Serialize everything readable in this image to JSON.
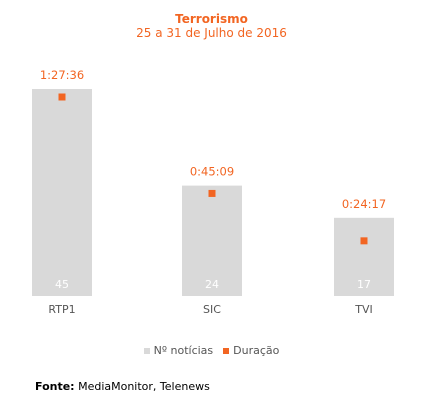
{
  "header": {
    "title": "Terrorismo",
    "subtitle": "25 a 31 de Julho de 2016"
  },
  "legend": {
    "news_label": "Nº notícias",
    "duration_label": "Duração"
  },
  "footer": {
    "source_label": "Fonte:",
    "source_text": " MediaMonitor, Telenews"
  },
  "colors": {
    "bar": "#d9d9d9",
    "marker": "#f26522",
    "bar_label": "#ffffff",
    "category_label": "#555555"
  },
  "chart_data": {
    "type": "bar",
    "title": "Terrorismo",
    "subtitle": "25 a 31 de Julho de 2016",
    "categories": [
      "RTP1",
      "SIC",
      "TVI"
    ],
    "series": [
      {
        "name": "Nº notícias",
        "type": "bar",
        "values": [
          45,
          24,
          17
        ]
      },
      {
        "name": "Duração",
        "type": "marker",
        "values": [
          "1:27:36",
          "0:45:09",
          "0:24:17"
        ]
      }
    ],
    "legend_position": "bottom",
    "grid": false
  }
}
